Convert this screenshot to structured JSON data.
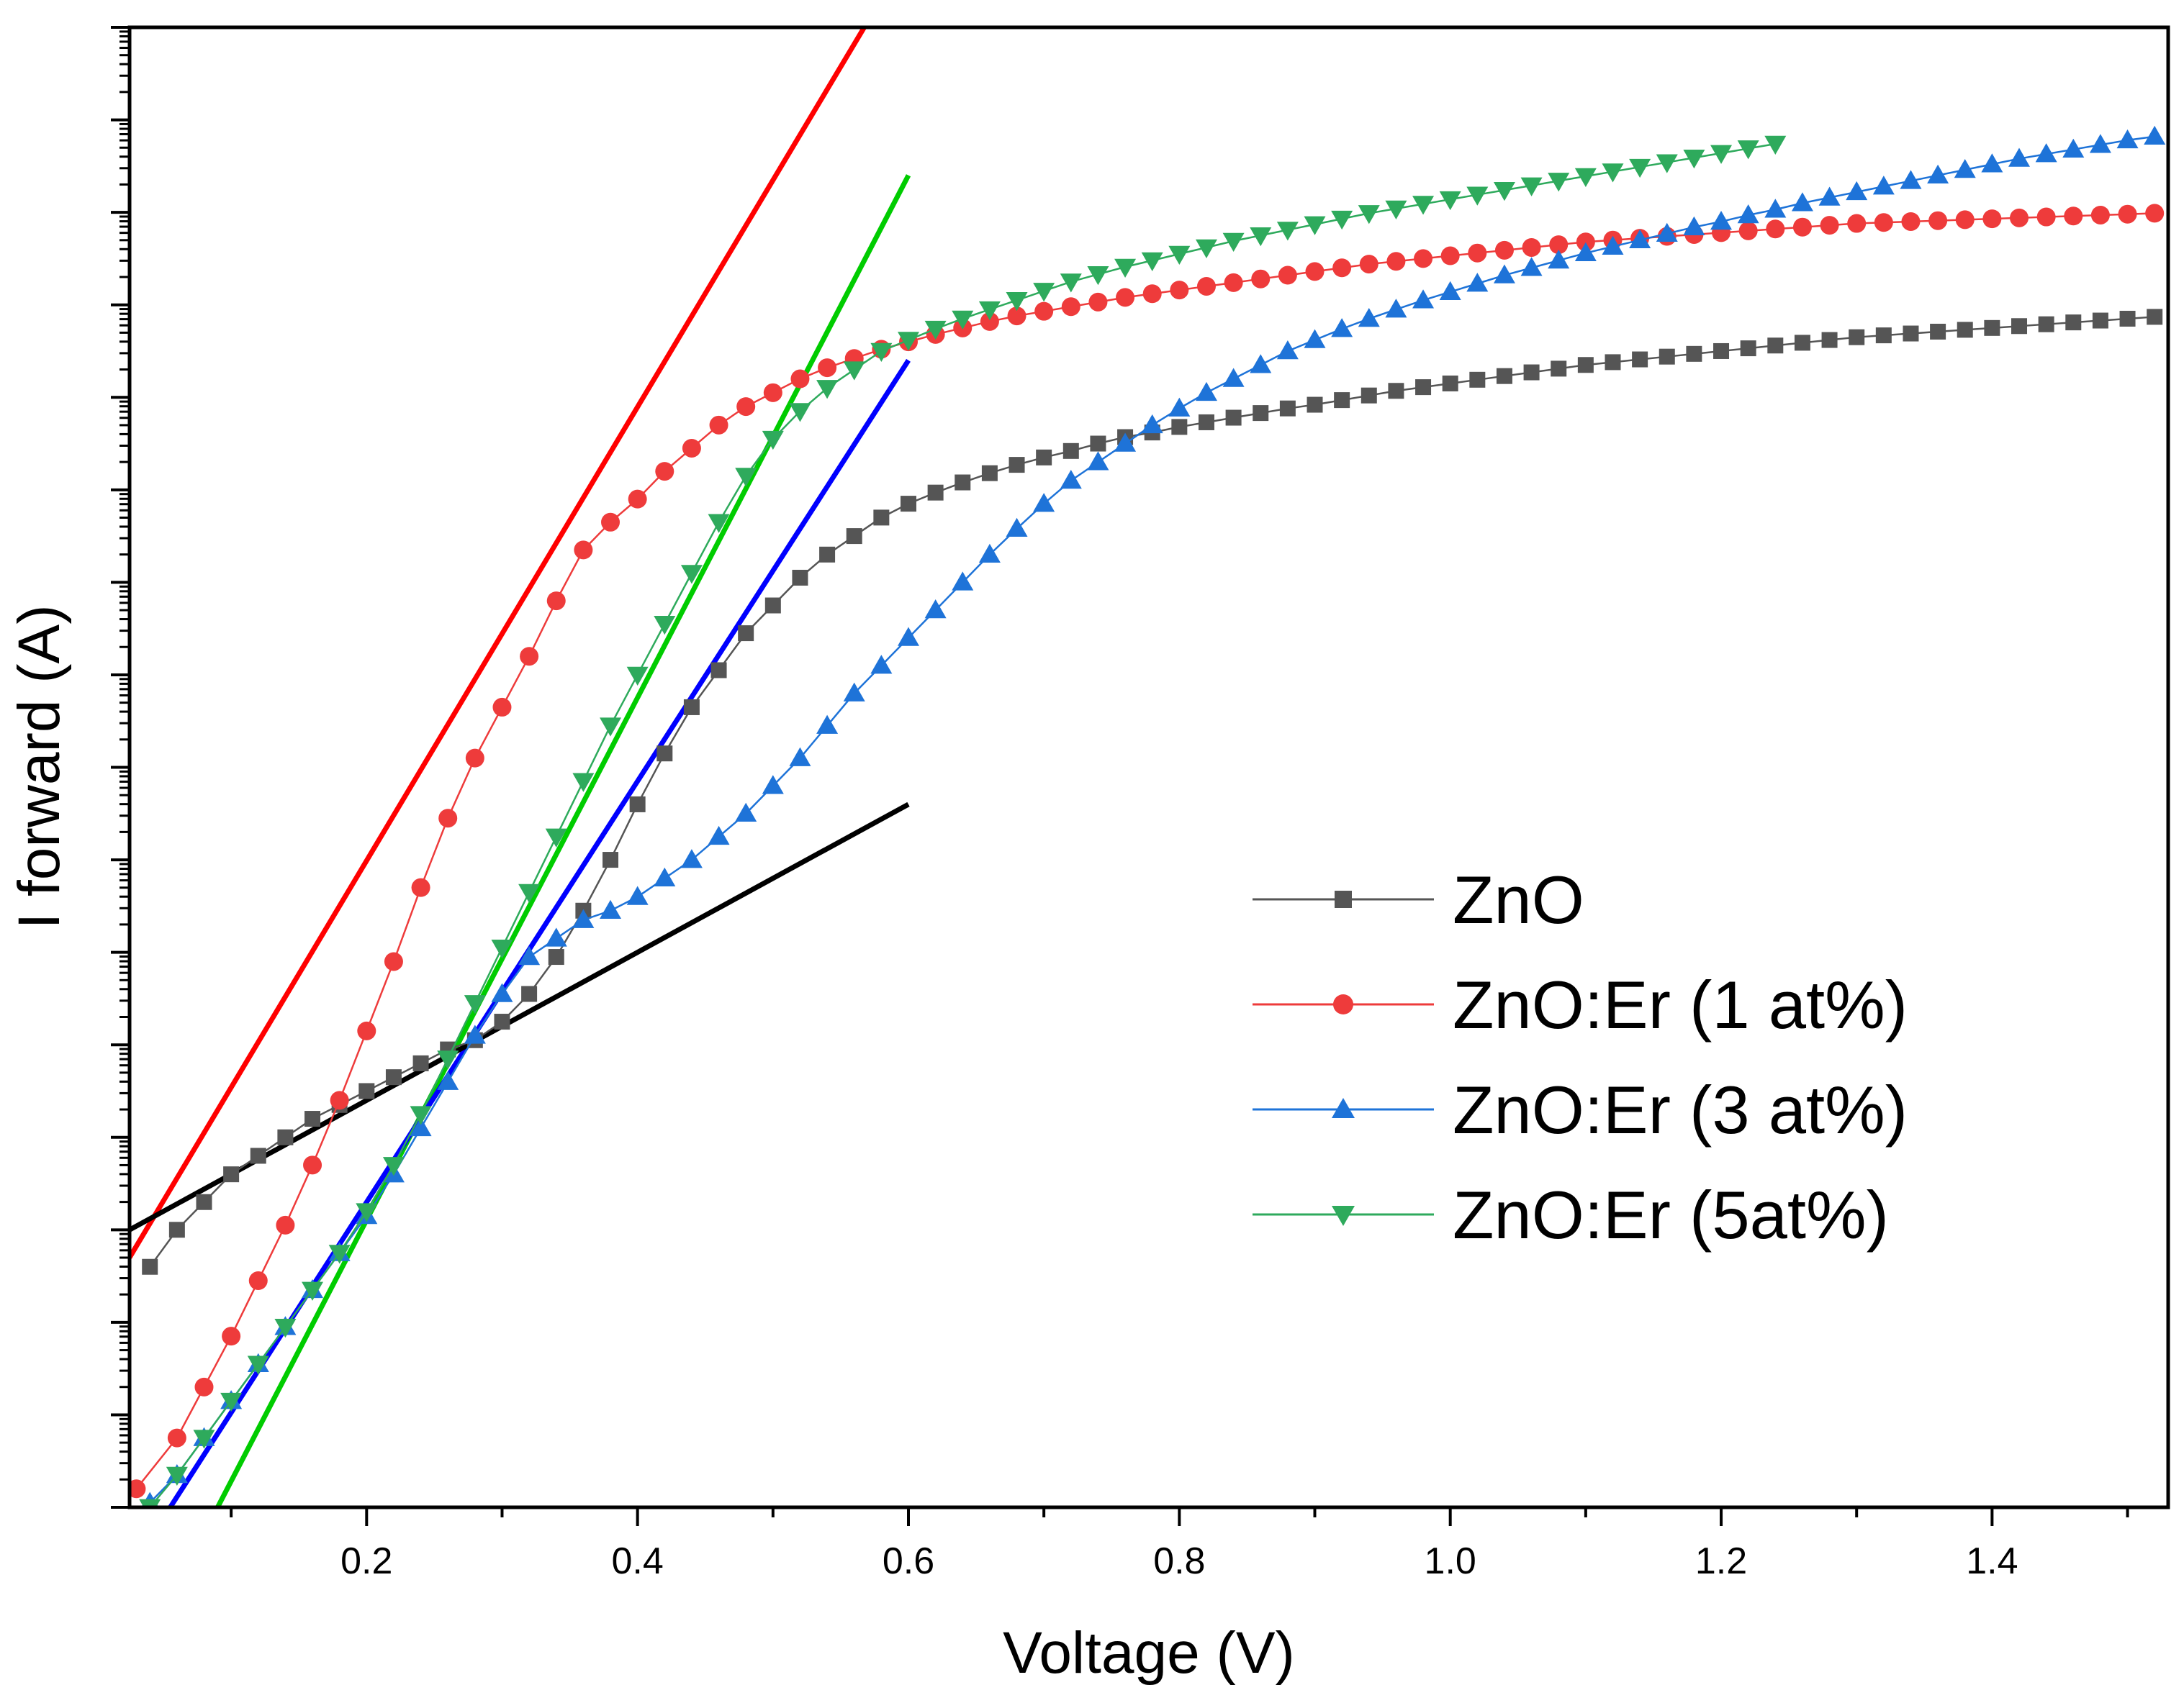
{
  "chart_data": {
    "type": "line",
    "title": "",
    "xlabel": "Voltage (V)",
    "ylabel": "I forward (A)",
    "xlim": [
      0.025,
      1.53
    ],
    "ylim": [
      0,
      16
    ],
    "yscale": "log (tick labels not printed; decade positions 0–16 from bottom)",
    "x_ticks": [
      "0.2",
      "0.4",
      "0.6",
      "0.8",
      "1.0",
      "1.2",
      "1.4"
    ],
    "x_tick_values": [
      0.2,
      0.4,
      0.6,
      0.8,
      1.0,
      1.2,
      1.4
    ],
    "y_major_ticks": [
      0,
      1,
      2,
      3,
      4,
      5,
      6,
      7,
      8,
      9,
      10,
      11,
      12,
      13,
      14,
      15,
      16
    ],
    "grid": false,
    "legend_position": "lower-right",
    "series": [
      {
        "name": "ZnO",
        "color": "#555555",
        "marker": "square",
        "x": [
          0.04,
          0.06,
          0.08,
          0.1,
          0.12,
          0.14,
          0.16,
          0.18,
          0.2,
          0.22,
          0.24,
          0.26,
          0.28,
          0.3,
          0.32,
          0.34,
          0.36,
          0.38,
          0.4,
          0.42,
          0.44,
          0.46,
          0.48,
          0.5,
          0.52,
          0.54,
          0.56,
          0.58,
          0.6,
          0.62,
          0.64,
          0.66,
          0.68,
          0.7,
          0.72,
          0.74,
          0.76,
          0.78,
          0.8,
          0.82,
          0.84,
          0.86,
          0.88,
          0.9,
          0.92,
          0.94,
          0.96,
          0.98,
          1.0,
          1.02,
          1.04,
          1.06,
          1.08,
          1.1,
          1.12,
          1.14,
          1.16,
          1.18,
          1.2,
          1.22,
          1.24,
          1.26,
          1.28,
          1.3,
          1.32,
          1.34,
          1.36,
          1.38,
          1.4,
          1.42,
          1.44,
          1.46,
          1.48,
          1.5,
          1.52
        ],
        "y": [
          2.6,
          3.0,
          3.3,
          3.6,
          3.8,
          4.0,
          4.2,
          4.35,
          4.5,
          4.65,
          4.8,
          4.95,
          5.05,
          5.25,
          5.55,
          5.95,
          6.45,
          7.0,
          7.6,
          8.15,
          8.65,
          9.05,
          9.45,
          9.75,
          10.05,
          10.3,
          10.5,
          10.7,
          10.85,
          10.97,
          11.08,
          11.18,
          11.27,
          11.35,
          11.42,
          11.5,
          11.57,
          11.62,
          11.68,
          11.73,
          11.78,
          11.83,
          11.88,
          11.92,
          11.97,
          12.02,
          12.07,
          12.11,
          12.15,
          12.19,
          12.23,
          12.27,
          12.31,
          12.35,
          12.38,
          12.41,
          12.44,
          12.47,
          12.5,
          12.53,
          12.56,
          12.59,
          12.62,
          12.65,
          12.67,
          12.69,
          12.71,
          12.73,
          12.75,
          12.77,
          12.79,
          12.81,
          12.83,
          12.85,
          12.87
        ]
      },
      {
        "name": "ZnO:Er (1 at%)",
        "color": "#ee3b3b",
        "marker": "circle",
        "x": [
          0.03,
          0.06,
          0.08,
          0.1,
          0.12,
          0.14,
          0.16,
          0.18,
          0.2,
          0.22,
          0.24,
          0.26,
          0.28,
          0.3,
          0.32,
          0.34,
          0.36,
          0.38,
          0.4,
          0.42,
          0.44,
          0.46,
          0.48,
          0.5,
          0.52,
          0.54,
          0.56,
          0.58,
          0.6,
          0.62,
          0.64,
          0.66,
          0.68,
          0.7,
          0.72,
          0.74,
          0.76,
          0.78,
          0.8,
          0.82,
          0.84,
          0.86,
          0.88,
          0.9,
          0.92,
          0.94,
          0.96,
          0.98,
          1.0,
          1.02,
          1.04,
          1.06,
          1.08,
          1.1,
          1.12,
          1.14,
          1.16,
          1.18,
          1.2,
          1.22,
          1.24,
          1.26,
          1.28,
          1.3,
          1.32,
          1.34,
          1.36,
          1.38,
          1.4,
          1.42,
          1.44,
          1.46,
          1.48,
          1.5,
          1.52
        ],
        "y": [
          0.2,
          0.75,
          1.3,
          1.85,
          2.45,
          3.05,
          3.7,
          4.4,
          5.15,
          5.9,
          6.7,
          7.45,
          8.1,
          8.65,
          9.2,
          9.8,
          10.35,
          10.65,
          10.9,
          11.2,
          11.45,
          11.7,
          11.9,
          12.05,
          12.2,
          12.32,
          12.42,
          12.52,
          12.6,
          12.68,
          12.75,
          12.82,
          12.88,
          12.93,
          12.98,
          13.03,
          13.08,
          13.12,
          13.16,
          13.2,
          13.24,
          13.28,
          13.32,
          13.36,
          13.4,
          13.44,
          13.47,
          13.5,
          13.53,
          13.56,
          13.59,
          13.62,
          13.65,
          13.68,
          13.7,
          13.72,
          13.74,
          13.76,
          13.78,
          13.8,
          13.82,
          13.84,
          13.86,
          13.88,
          13.89,
          13.9,
          13.91,
          13.92,
          13.93,
          13.94,
          13.95,
          13.96,
          13.97,
          13.98,
          13.99
        ]
      },
      {
        "name": "ZnO:Er (3 at%)",
        "color": "#1e73d8",
        "marker": "triangle-up",
        "x": [
          0.04,
          0.06,
          0.08,
          0.1,
          0.12,
          0.14,
          0.16,
          0.18,
          0.2,
          0.22,
          0.24,
          0.26,
          0.28,
          0.3,
          0.32,
          0.34,
          0.36,
          0.38,
          0.4,
          0.42,
          0.44,
          0.46,
          0.48,
          0.5,
          0.52,
          0.54,
          0.56,
          0.58,
          0.6,
          0.62,
          0.64,
          0.66,
          0.68,
          0.7,
          0.72,
          0.74,
          0.76,
          0.78,
          0.8,
          0.82,
          0.84,
          0.86,
          0.88,
          0.9,
          0.92,
          0.94,
          0.96,
          0.98,
          1.0,
          1.02,
          1.04,
          1.06,
          1.08,
          1.1,
          1.12,
          1.14,
          1.16,
          1.18,
          1.2,
          1.22,
          1.24,
          1.26,
          1.28,
          1.3,
          1.32,
          1.34,
          1.36,
          1.38,
          1.4,
          1.42,
          1.44,
          1.46,
          1.48,
          1.5,
          1.52
        ],
        "y": [
          0.05,
          0.35,
          0.75,
          1.15,
          1.55,
          1.95,
          2.35,
          2.75,
          3.15,
          3.6,
          4.1,
          4.6,
          5.1,
          5.55,
          5.95,
          6.15,
          6.35,
          6.45,
          6.6,
          6.8,
          7.0,
          7.25,
          7.5,
          7.8,
          8.1,
          8.45,
          8.8,
          9.1,
          9.4,
          9.7,
          10.0,
          10.3,
          10.58,
          10.85,
          11.1,
          11.3,
          11.5,
          11.7,
          11.88,
          12.05,
          12.2,
          12.35,
          12.5,
          12.62,
          12.74,
          12.85,
          12.95,
          13.05,
          13.14,
          13.23,
          13.32,
          13.4,
          13.48,
          13.56,
          13.63,
          13.7,
          13.77,
          13.84,
          13.9,
          13.97,
          14.03,
          14.1,
          14.16,
          14.22,
          14.28,
          14.34,
          14.4,
          14.46,
          14.52,
          14.58,
          14.63,
          14.68,
          14.73,
          14.78,
          14.82
        ]
      },
      {
        "name": "ZnO:Er (5at%)",
        "color": "#2eaa5c",
        "marker": "triangle-down",
        "x": [
          0.04,
          0.06,
          0.08,
          0.1,
          0.12,
          0.14,
          0.16,
          0.18,
          0.2,
          0.22,
          0.24,
          0.26,
          0.28,
          0.3,
          0.32,
          0.34,
          0.36,
          0.38,
          0.4,
          0.42,
          0.44,
          0.46,
          0.48,
          0.5,
          0.52,
          0.54,
          0.56,
          0.58,
          0.6,
          0.62,
          0.64,
          0.66,
          0.68,
          0.7,
          0.72,
          0.74,
          0.76,
          0.78,
          0.8,
          0.82,
          0.84,
          0.86,
          0.88,
          0.9,
          0.92,
          0.94,
          0.96,
          0.98,
          1.0,
          1.02,
          1.04,
          1.06,
          1.08,
          1.1,
          1.12,
          1.14,
          1.16,
          1.18,
          1.2,
          1.22,
          1.24
        ],
        "y": [
          0.0,
          0.35,
          0.75,
          1.15,
          1.55,
          1.95,
          2.35,
          2.75,
          3.2,
          3.7,
          4.25,
          4.85,
          5.45,
          6.05,
          6.65,
          7.25,
          7.85,
          8.45,
          9.0,
          9.55,
          10.1,
          10.65,
          11.15,
          11.55,
          11.85,
          12.1,
          12.3,
          12.5,
          12.62,
          12.74,
          12.85,
          12.95,
          13.05,
          13.15,
          13.25,
          13.33,
          13.41,
          13.48,
          13.55,
          13.62,
          13.69,
          13.75,
          13.81,
          13.87,
          13.93,
          13.99,
          14.04,
          14.09,
          14.14,
          14.19,
          14.24,
          14.29,
          14.34,
          14.39,
          14.44,
          14.49,
          14.54,
          14.59,
          14.64,
          14.69,
          14.74
        ]
      }
    ],
    "fit_lines": [
      {
        "color": "#ff0000",
        "x": [
          0.025,
          0.6
        ],
        "y": [
          2.7,
          16.8
        ]
      },
      {
        "color": "#00cc00",
        "x": [
          0.09,
          0.6
        ],
        "y": [
          0.0,
          14.4
        ]
      },
      {
        "color": "#0000ff",
        "x": [
          0.055,
          0.6
        ],
        "y": [
          0.0,
          12.4
        ]
      },
      {
        "color": "#000000",
        "x": [
          0.025,
          0.6
        ],
        "y": [
          3.0,
          7.6
        ]
      }
    ]
  }
}
